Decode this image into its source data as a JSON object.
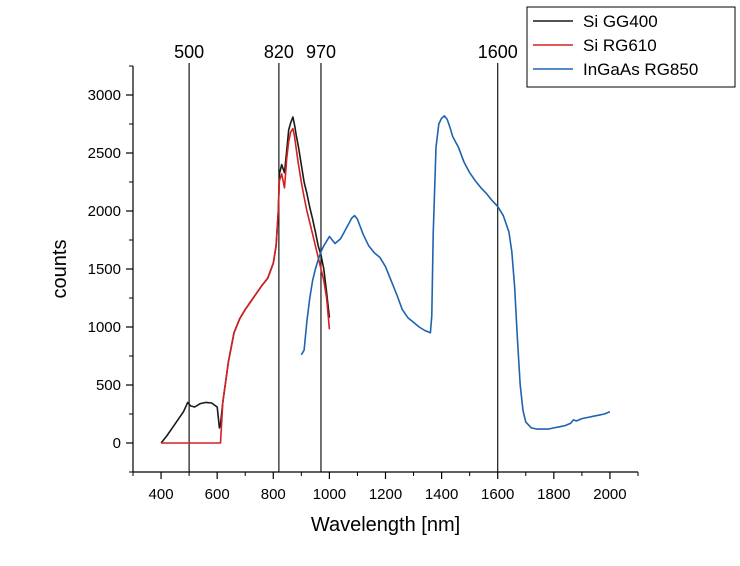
{
  "chart_data": {
    "type": "line",
    "xlabel": "Wavelength [nm]",
    "ylabel": "counts",
    "xlim": [
      300,
      2100
    ],
    "ylim": [
      -250,
      3250
    ],
    "xticks": [
      400,
      600,
      800,
      1000,
      1200,
      1400,
      1600,
      1800,
      2000
    ],
    "yticks": [
      0,
      500,
      1000,
      1500,
      2000,
      2500,
      3000
    ],
    "grid": false,
    "legend_position": "top-right",
    "vertical_markers": [
      {
        "x": 500,
        "label": "500"
      },
      {
        "x": 820,
        "label": "820"
      },
      {
        "x": 970,
        "label": "970"
      },
      {
        "x": 1600,
        "label": "1600"
      }
    ],
    "series": [
      {
        "name": "Si GG400",
        "color": "#1a1a1a",
        "x": [
          400,
          420,
          440,
          460,
          480,
          495,
          505,
          520,
          540,
          560,
          580,
          600,
          608,
          612,
          620,
          640,
          660,
          680,
          700,
          720,
          740,
          760,
          780,
          800,
          810,
          818,
          822,
          830,
          840,
          848,
          855,
          862,
          870,
          876,
          882,
          890,
          900,
          910,
          920,
          930,
          940,
          950,
          960,
          970,
          980,
          990,
          1000
        ],
        "y": [
          0,
          60,
          130,
          200,
          270,
          350,
          320,
          310,
          340,
          350,
          345,
          310,
          130,
          160,
          350,
          700,
          950,
          1070,
          1150,
          1220,
          1290,
          1360,
          1420,
          1550,
          1700,
          2000,
          2320,
          2400,
          2330,
          2520,
          2700,
          2760,
          2810,
          2740,
          2650,
          2550,
          2400,
          2250,
          2150,
          2030,
          1930,
          1820,
          1700,
          1620,
          1500,
          1300,
          1080
        ]
      },
      {
        "name": "Si RG610",
        "color": "#d42020",
        "x": [
          400,
          500,
          600,
          612,
          620,
          640,
          660,
          680,
          700,
          720,
          740,
          760,
          780,
          800,
          810,
          818,
          822,
          830,
          840,
          848,
          855,
          862,
          870,
          876,
          882,
          890,
          900,
          910,
          920,
          930,
          940,
          950,
          960,
          970,
          980,
          990,
          1000
        ],
        "y": [
          0,
          0,
          0,
          0,
          350,
          700,
          950,
          1070,
          1150,
          1220,
          1290,
          1360,
          1420,
          1550,
          1700,
          2000,
          2260,
          2320,
          2200,
          2450,
          2600,
          2680,
          2710,
          2640,
          2530,
          2400,
          2250,
          2120,
          2000,
          1900,
          1800,
          1700,
          1600,
          1500,
          1400,
          1250,
          980
        ]
      },
      {
        "name": "InGaAs RG850",
        "color": "#1f63b0",
        "x": [
          900,
          910,
          920,
          930,
          940,
          950,
          960,
          970,
          980,
          990,
          1000,
          1020,
          1040,
          1060,
          1080,
          1090,
          1100,
          1120,
          1140,
          1160,
          1180,
          1200,
          1220,
          1240,
          1260,
          1280,
          1300,
          1320,
          1340,
          1360,
          1365,
          1370,
          1380,
          1390,
          1400,
          1410,
          1420,
          1430,
          1440,
          1460,
          1480,
          1500,
          1520,
          1540,
          1560,
          1580,
          1600,
          1620,
          1640,
          1650,
          1660,
          1670,
          1680,
          1690,
          1700,
          1720,
          1740,
          1760,
          1780,
          1800,
          1820,
          1840,
          1860,
          1870,
          1880,
          1900,
          1920,
          1940,
          1960,
          1980,
          2000
        ],
        "y": [
          760,
          800,
          1050,
          1250,
          1400,
          1500,
          1580,
          1650,
          1700,
          1740,
          1780,
          1720,
          1760,
          1850,
          1940,
          1960,
          1930,
          1800,
          1700,
          1640,
          1600,
          1520,
          1400,
          1280,
          1150,
          1080,
          1040,
          1000,
          970,
          950,
          1100,
          1800,
          2550,
          2750,
          2800,
          2820,
          2790,
          2720,
          2640,
          2550,
          2420,
          2330,
          2260,
          2200,
          2150,
          2090,
          2040,
          1960,
          1820,
          1650,
          1350,
          900,
          500,
          280,
          180,
          130,
          120,
          120,
          120,
          130,
          140,
          150,
          170,
          200,
          190,
          210,
          220,
          230,
          240,
          250,
          270
        ]
      }
    ]
  }
}
